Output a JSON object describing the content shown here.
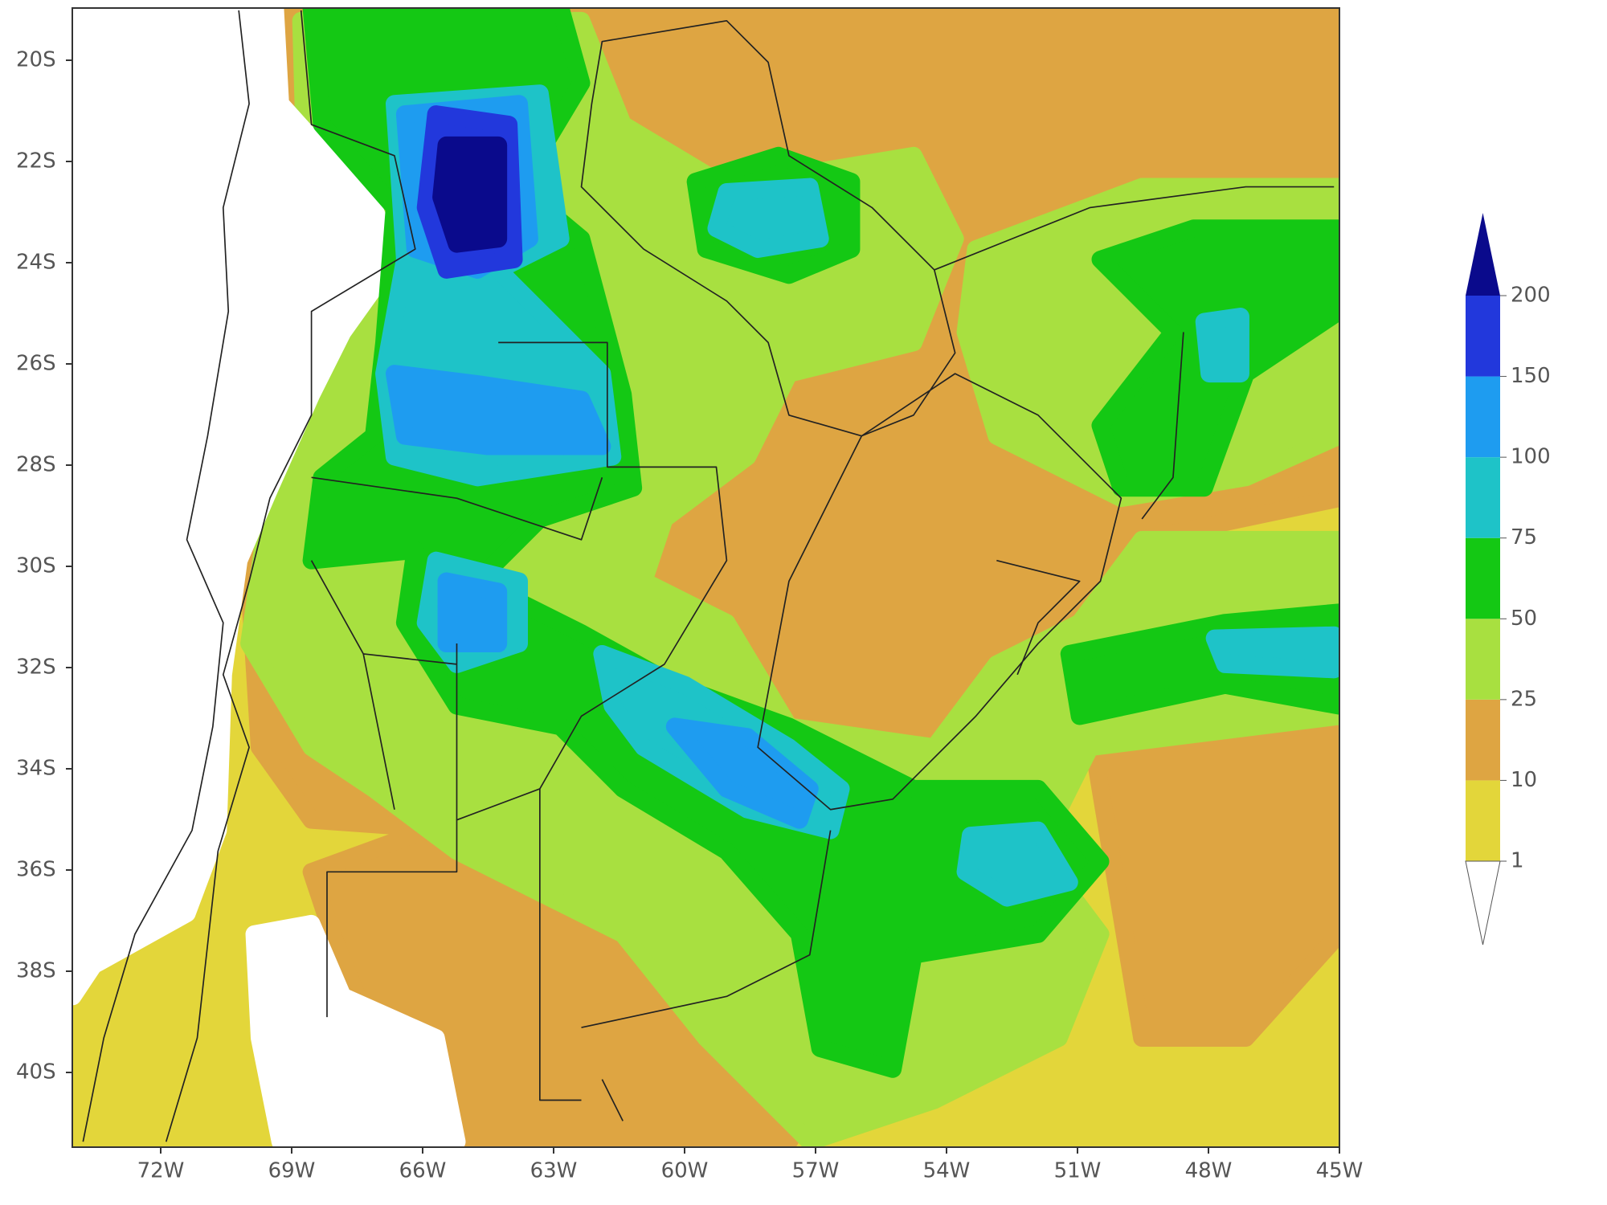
{
  "map": {
    "lat_labels": [
      "20S",
      "22S",
      "24S",
      "26S",
      "28S",
      "30S",
      "32S",
      "34S",
      "36S",
      "38S",
      "40S"
    ],
    "lon_labels": [
      "72W",
      "69W",
      "66W",
      "63W",
      "60W",
      "57W",
      "54W",
      "51W",
      "48W",
      "45W"
    ]
  },
  "legend": {
    "levels": [
      1,
      10,
      25,
      50,
      75,
      100,
      150,
      200
    ],
    "colors": [
      "#ffffff",
      "#e3d63a",
      "#dea542",
      "#a8e040",
      "#14c814",
      "#1ec3c8",
      "#1e9cf0",
      "#2238dc",
      "#0a0a8c"
    ]
  }
}
